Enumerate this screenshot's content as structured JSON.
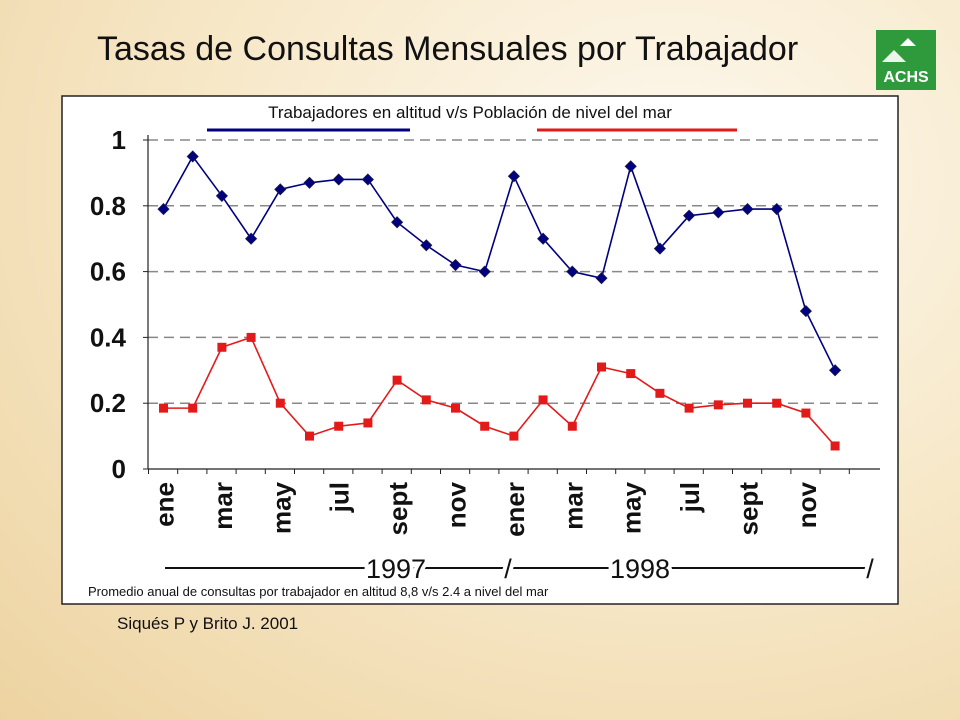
{
  "slide": {
    "title": "Tasas de Consultas Mensuales por Trabajador",
    "logo_text": "ACHS",
    "citation": "Siqués P y Brito J. 2001"
  },
  "chart_data": {
    "type": "line",
    "subtitle": "Trabajadores en altitud v/s Población de nivel del mar",
    "footnote": "Promedio anual de consultas por trabajador en altitud 8,8 v/s 2.4 a nivel del mar",
    "y_ticks": [
      "0",
      "0.2",
      "0.4",
      "0.6",
      "0.8",
      "1"
    ],
    "y_tick_values": [
      0,
      0.2,
      0.4,
      0.6,
      0.8,
      1
    ],
    "ylim": [
      0,
      1.0
    ],
    "grid": true,
    "grid_style": "dashed",
    "x_tick_labels": [
      "ene",
      "mar",
      "may",
      "jul",
      "sept",
      "nov",
      "ener",
      "mar",
      "may",
      "jul",
      "sept",
      "nov"
    ],
    "x_tick_indices": [
      0,
      2,
      4,
      6,
      8,
      10,
      12,
      14,
      16,
      18,
      20,
      22
    ],
    "year_labels": [
      "1997",
      "1998"
    ],
    "year_separator": "/",
    "series": [
      {
        "color": "#000080",
        "marker": "diamond",
        "values": [
          0.79,
          0.95,
          0.83,
          0.7,
          0.85,
          0.87,
          0.88,
          0.88,
          0.75,
          0.68,
          0.62,
          0.6,
          0.89,
          0.7,
          0.6,
          0.58,
          0.92,
          0.67,
          0.77,
          0.78,
          0.79,
          0.79,
          0.48,
          0.3
        ]
      },
      {
        "color": "#e31a1a",
        "marker": "square",
        "values": [
          0.185,
          0.185,
          0.37,
          0.4,
          0.2,
          0.1,
          0.13,
          0.14,
          0.27,
          0.21,
          0.185,
          0.13,
          0.1,
          0.21,
          0.13,
          0.31,
          0.29,
          0.23,
          0.185,
          0.195,
          0.2,
          0.2,
          0.17,
          0.07
        ]
      }
    ]
  }
}
